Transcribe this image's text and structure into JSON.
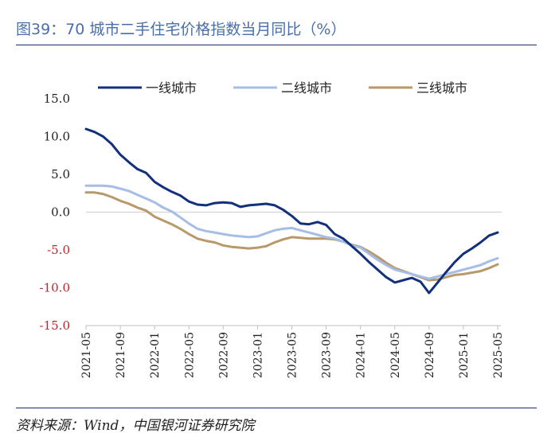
{
  "title": "图39：70 城市二手住宅价格指数当月同比（%）",
  "source": "资料来源：Wind，中国银河证券研究院",
  "colors": {
    "tier1": "#13307a",
    "tier2": "#a6bde6",
    "tier3": "#b8996a",
    "negative_tick": "#c0262d",
    "positive_tick": "#222222"
  },
  "chart_data": {
    "type": "line",
    "ylim": [
      -15,
      15
    ],
    "y_ticks": [
      "15.0",
      "10.0",
      "5.0",
      "0.0",
      "-5.0",
      "-10.0",
      "-15.0"
    ],
    "x_ticks": [
      "2021-05",
      "2021-09",
      "2022-01",
      "2022-05",
      "2022-09",
      "2023-01",
      "2023-05",
      "2023-09",
      "2024-01",
      "2024-05",
      "2024-09",
      "2025-01",
      "2025-05"
    ],
    "legend_position": "top",
    "grid": false,
    "x": [
      "2021-05",
      "2021-06",
      "2021-07",
      "2021-08",
      "2021-09",
      "2021-10",
      "2021-11",
      "2021-12",
      "2022-01",
      "2022-02",
      "2022-03",
      "2022-04",
      "2022-05",
      "2022-06",
      "2022-07",
      "2022-08",
      "2022-09",
      "2022-10",
      "2022-11",
      "2022-12",
      "2023-01",
      "2023-02",
      "2023-03",
      "2023-04",
      "2023-05",
      "2023-06",
      "2023-07",
      "2023-08",
      "2023-09",
      "2023-10",
      "2023-11",
      "2023-12",
      "2024-01",
      "2024-02",
      "2024-03",
      "2024-04",
      "2024-05",
      "2024-06",
      "2024-07",
      "2024-08",
      "2024-09",
      "2024-10",
      "2024-11",
      "2024-12",
      "2025-01",
      "2025-02",
      "2025-03",
      "2025-04",
      "2025-05"
    ],
    "series": [
      {
        "name": "一线城市",
        "key": "tier1",
        "values": [
          11.0,
          10.6,
          10.0,
          9.0,
          7.6,
          6.6,
          5.7,
          5.2,
          4.0,
          3.3,
          2.7,
          2.2,
          1.4,
          1.0,
          0.9,
          1.2,
          1.3,
          1.2,
          0.7,
          0.9,
          1.0,
          1.1,
          0.9,
          0.3,
          -0.5,
          -1.5,
          -1.6,
          -1.3,
          -1.7,
          -2.9,
          -3.5,
          -4.5,
          -5.5,
          -6.6,
          -7.6,
          -8.6,
          -9.3,
          -9.0,
          -8.7,
          -9.2,
          -10.7,
          -9.3,
          -7.9,
          -6.6,
          -5.5,
          -4.8,
          -4.0,
          -3.1,
          -2.7
        ]
      },
      {
        "name": "二线城市",
        "key": "tier2",
        "values": [
          3.5,
          3.5,
          3.5,
          3.4,
          3.1,
          2.8,
          2.3,
          1.8,
          1.3,
          0.6,
          0.1,
          -0.7,
          -1.5,
          -2.2,
          -2.5,
          -2.7,
          -2.9,
          -3.1,
          -3.2,
          -3.3,
          -3.2,
          -2.8,
          -2.4,
          -2.2,
          -2.1,
          -2.4,
          -2.7,
          -3.0,
          -3.3,
          -3.5,
          -3.9,
          -4.4,
          -4.7,
          -5.5,
          -6.3,
          -7.0,
          -7.6,
          -7.9,
          -8.2,
          -8.5,
          -8.8,
          -8.5,
          -8.2,
          -7.9,
          -7.6,
          -7.3,
          -7.0,
          -6.5,
          -6.1
        ]
      },
      {
        "name": "三线城市",
        "key": "tier3",
        "values": [
          2.6,
          2.6,
          2.4,
          2.0,
          1.5,
          1.1,
          0.6,
          0.2,
          -0.6,
          -1.1,
          -1.6,
          -2.2,
          -2.9,
          -3.5,
          -3.8,
          -4.0,
          -4.4,
          -4.6,
          -4.7,
          -4.8,
          -4.7,
          -4.5,
          -4.0,
          -3.6,
          -3.3,
          -3.4,
          -3.5,
          -3.5,
          -3.5,
          -3.6,
          -3.9,
          -4.3,
          -4.6,
          -5.2,
          -5.9,
          -6.7,
          -7.4,
          -7.8,
          -8.2,
          -8.6,
          -9.0,
          -8.9,
          -8.6,
          -8.3,
          -8.2,
          -8.0,
          -7.8,
          -7.4,
          -6.9
        ]
      }
    ]
  }
}
